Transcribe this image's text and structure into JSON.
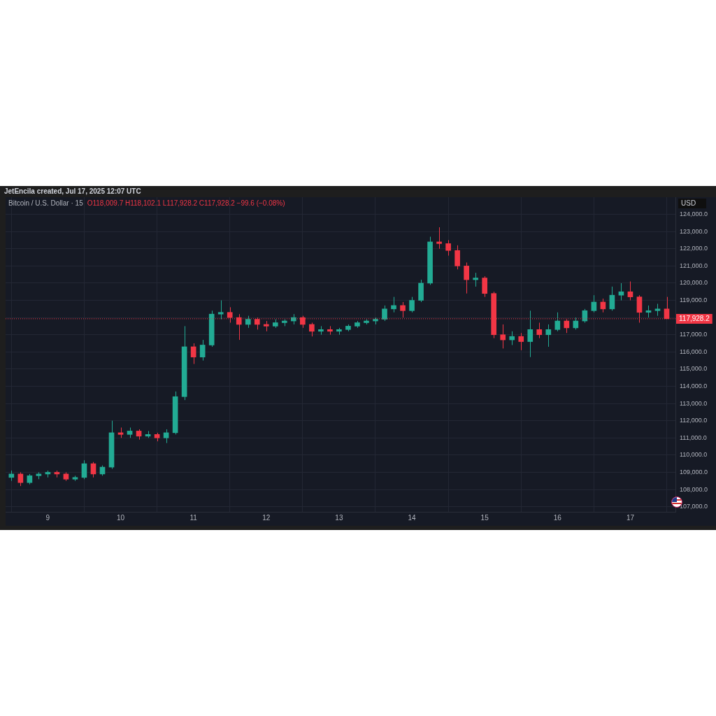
{
  "chart_data": {
    "type": "candlestick",
    "title": "Bitcoin / U.S. Dollar · 15",
    "subtitle": "O118,009.7 H118,102.1 L117,928.2 C117,928.2 −99.6 (−0.08%)",
    "ylabel": "USD",
    "annotations": [
      "JetEncila created, Jul 17, 2025 12:07 UTC"
    ],
    "x": [
      8.5,
      8.625,
      8.75,
      8.875,
      9,
      9.125,
      9.25,
      9.375,
      9.5,
      9.625,
      9.75,
      9.875,
      10,
      10.125,
      10.25,
      10.375,
      10.5,
      10.625,
      10.75,
      10.875,
      11,
      11.125,
      11.25,
      11.375,
      11.5,
      11.625,
      11.75,
      11.875,
      12,
      12.125,
      12.25,
      12.375,
      12.5,
      12.625,
      12.75,
      12.875,
      13,
      13.125,
      13.25,
      13.375,
      13.5,
      13.625,
      13.75,
      13.875,
      14,
      14.125,
      14.25,
      14.375,
      14.5,
      14.625,
      14.75,
      14.875,
      15,
      15.125,
      15.25,
      15.375,
      15.5,
      15.625,
      15.75,
      15.875,
      16,
      16.125,
      16.25,
      16.375,
      16.5,
      16.625,
      16.75,
      16.875,
      17,
      17.125,
      17.25,
      17.375,
      17.5
    ],
    "ohlc": [
      [
        108700,
        109100,
        108500,
        108900
      ],
      [
        108900,
        109000,
        108200,
        108400
      ],
      [
        108400,
        108900,
        108300,
        108800
      ],
      [
        108800,
        109000,
        108600,
        108900
      ],
      [
        108900,
        109100,
        108700,
        109000
      ],
      [
        109000,
        109100,
        108700,
        108900
      ],
      [
        108900,
        109000,
        108500,
        108600
      ],
      [
        108600,
        108800,
        108500,
        108700
      ],
      [
        108700,
        109700,
        108600,
        109500
      ],
      [
        109500,
        109600,
        108700,
        108900
      ],
      [
        108900,
        109400,
        108800,
        109300
      ],
      [
        109300,
        112000,
        109200,
        111300
      ],
      [
        111300,
        111600,
        111000,
        111200
      ],
      [
        111200,
        111600,
        111000,
        111400
      ],
      [
        111400,
        111500,
        110900,
        111100
      ],
      [
        111100,
        111400,
        111000,
        111200
      ],
      [
        111200,
        111300,
        110800,
        111000
      ],
      [
        111000,
        111500,
        110700,
        111300
      ],
      [
        111300,
        113700,
        111200,
        113400
      ],
      [
        113400,
        117500,
        113200,
        116300
      ],
      [
        116300,
        116500,
        115300,
        115700
      ],
      [
        115700,
        116700,
        115500,
        116400
      ],
      [
        116400,
        118400,
        116300,
        118200
      ],
      [
        118200,
        119000,
        117900,
        118300
      ],
      [
        118300,
        118600,
        117700,
        118000
      ],
      [
        118000,
        118200,
        116700,
        117600
      ],
      [
        117600,
        118100,
        117400,
        117900
      ],
      [
        117900,
        118000,
        117300,
        117600
      ],
      [
        117600,
        117800,
        117200,
        117500
      ],
      [
        117500,
        117900,
        117400,
        117700
      ],
      [
        117700,
        117900,
        117500,
        117800
      ],
      [
        117800,
        118200,
        117600,
        118000
      ],
      [
        118000,
        118100,
        117400,
        117600
      ],
      [
        117600,
        117700,
        116900,
        117200
      ],
      [
        117200,
        117500,
        117000,
        117300
      ],
      [
        117300,
        117500,
        117000,
        117200
      ],
      [
        117200,
        117400,
        117000,
        117300
      ],
      [
        117300,
        117600,
        117200,
        117500
      ],
      [
        117500,
        117800,
        117400,
        117700
      ],
      [
        117700,
        117900,
        117600,
        117800
      ],
      [
        117800,
        118000,
        117600,
        117900
      ],
      [
        117900,
        118700,
        117800,
        118500
      ],
      [
        118500,
        119200,
        118300,
        118700
      ],
      [
        118700,
        118900,
        118000,
        118400
      ],
      [
        118400,
        119200,
        118300,
        119000
      ],
      [
        119000,
        120200,
        118900,
        120000
      ],
      [
        120000,
        122700,
        119900,
        122400
      ],
      [
        122400,
        123250,
        122000,
        122300
      ],
      [
        122300,
        122500,
        121600,
        121900
      ],
      [
        121900,
        122200,
        120800,
        121000
      ],
      [
        121000,
        121200,
        119400,
        120200
      ],
      [
        120200,
        120600,
        119800,
        120300
      ],
      [
        120300,
        120400,
        119200,
        119400
      ],
      [
        119400,
        119500,
        116800,
        117000
      ],
      [
        117000,
        117600,
        116200,
        116700
      ],
      [
        116700,
        117200,
        116400,
        116900
      ],
      [
        116900,
        117100,
        116100,
        116600
      ],
      [
        116600,
        118400,
        115700,
        117300
      ],
      [
        117300,
        117700,
        116800,
        117000
      ],
      [
        117000,
        117600,
        116300,
        117300
      ],
      [
        117300,
        118300,
        117200,
        117800
      ],
      [
        117800,
        117900,
        117100,
        117400
      ],
      [
        117400,
        118000,
        117300,
        117800
      ],
      [
        117800,
        118500,
        117700,
        118400
      ],
      [
        118400,
        119300,
        118300,
        118900
      ],
      [
        118900,
        119100,
        118300,
        118500
      ],
      [
        118500,
        119800,
        118400,
        119300
      ],
      [
        119300,
        120000,
        119000,
        119500
      ],
      [
        119500,
        120100,
        119000,
        119200
      ],
      [
        119200,
        119300,
        117700,
        118300
      ],
      [
        118300,
        118700,
        118000,
        118400
      ],
      [
        118400,
        118800,
        118100,
        118500
      ],
      [
        118500,
        119200,
        117928.2,
        117928.2
      ]
    ],
    "colors": [
      "#22ab94",
      "#f23645",
      "#22ab94",
      "#22ab94",
      "#22ab94",
      "#f23645",
      "#f23645",
      "#22ab94",
      "#22ab94",
      "#f23645",
      "#22ab94",
      "#22ab94",
      "#f23645",
      "#22ab94",
      "#f23645",
      "#22ab94",
      "#f23645",
      "#22ab94",
      "#22ab94",
      "#22ab94",
      "#f23645",
      "#22ab94",
      "#22ab94",
      "#22ab94",
      "#f23645",
      "#f23645",
      "#22ab94",
      "#f23645",
      "#f23645",
      "#22ab94",
      "#22ab94",
      "#22ab94",
      "#f23645",
      "#f23645",
      "#22ab94",
      "#f23645",
      "#22ab94",
      "#22ab94",
      "#22ab94",
      "#22ab94",
      "#22ab94",
      "#22ab94",
      "#22ab94",
      "#f23645",
      "#22ab94",
      "#22ab94",
      "#22ab94",
      "#f23645",
      "#f23645",
      "#f23645",
      "#f23645",
      "#22ab94",
      "#f23645",
      "#f23645",
      "#f23645",
      "#22ab94",
      "#f23645",
      "#22ab94",
      "#f23645",
      "#22ab94",
      "#22ab94",
      "#f23645",
      "#22ab94",
      "#22ab94",
      "#22ab94",
      "#f23645",
      "#22ab94",
      "#22ab94",
      "#f23645",
      "#f23645",
      "#22ab94",
      "#22ab94",
      "#f23645"
    ],
    "xlim": [
      8.42,
      17.62
    ],
    "xticks": [
      9,
      10,
      11,
      12,
      13,
      14,
      15,
      16,
      17
    ],
    "ylim": [
      106700,
      125000
    ],
    "yticks": [
      {
        "value": 107000,
        "label": "107,000.0"
      },
      {
        "value": 108000,
        "label": "108,000.0"
      },
      {
        "value": 109000,
        "label": "109,000.0"
      },
      {
        "value": 110000,
        "label": "110,000.0"
      },
      {
        "value": 111000,
        "label": "111,000.0"
      },
      {
        "value": 112000,
        "label": "112,000.0"
      },
      {
        "value": 113000,
        "label": "113,000.0"
      },
      {
        "value": 114000,
        "label": "114,000.0"
      },
      {
        "value": 115000,
        "label": "115,000.0"
      },
      {
        "value": 116000,
        "label": "116,000.0"
      },
      {
        "value": 117000,
        "label": "117,000.0"
      },
      {
        "value": 118000,
        "label": null
      },
      {
        "value": 119000,
        "label": "119,000.0"
      },
      {
        "value": 120000,
        "label": "120,000.0"
      },
      {
        "value": 121000,
        "label": "121,000.0"
      },
      {
        "value": 122000,
        "label": "122,000.0"
      },
      {
        "value": 123000,
        "label": "123,000.0"
      },
      {
        "value": 124000,
        "label": "124,000.0"
      }
    ],
    "ref_lines": [
      {
        "axis": "y",
        "value": 117928.2,
        "label": "117,928.2",
        "color": "#f23645",
        "line_style": "dotted"
      }
    ],
    "grid": true
  }
}
